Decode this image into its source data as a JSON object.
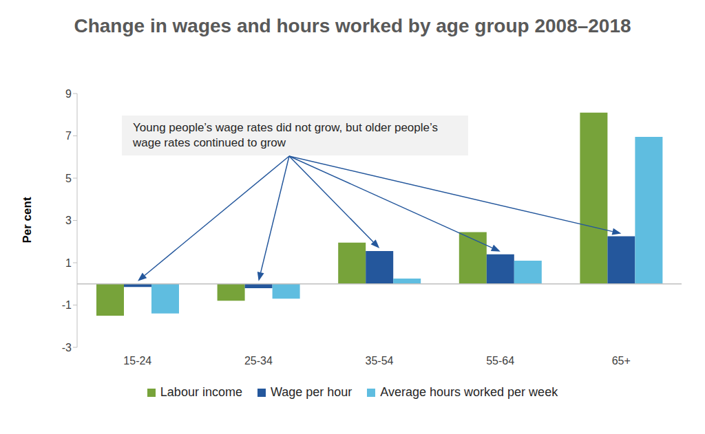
{
  "chart_data": {
    "type": "bar",
    "title": "Change in wages and hours worked by age group 2008–2018",
    "y_label": "Per cent",
    "annotation": {
      "text": "Young people’s wage rates did not grow, but older people’s wage rates continued to grow",
      "series": "Wage per hour"
    },
    "categories": [
      "15-24",
      "25-34",
      "35-54",
      "55-64",
      "65+"
    ],
    "series": [
      {
        "name": "Labour income",
        "color": "#77a33a",
        "values": [
          -1.5,
          -0.8,
          1.95,
          2.45,
          8.1
        ]
      },
      {
        "name": "Wage per hour",
        "color": "#24579c",
        "values": [
          -0.15,
          -0.2,
          1.55,
          1.4,
          2.25
        ]
      },
      {
        "name": "Average hours worked per week",
        "color": "#5fbde0",
        "values": [
          -1.4,
          -0.7,
          0.25,
          1.1,
          6.95
        ]
      }
    ],
    "ylim": [
      -3,
      9
    ],
    "yticks": [
      -3,
      -1,
      1,
      3,
      5,
      7,
      9
    ],
    "grid": false,
    "legend": "bottom"
  }
}
